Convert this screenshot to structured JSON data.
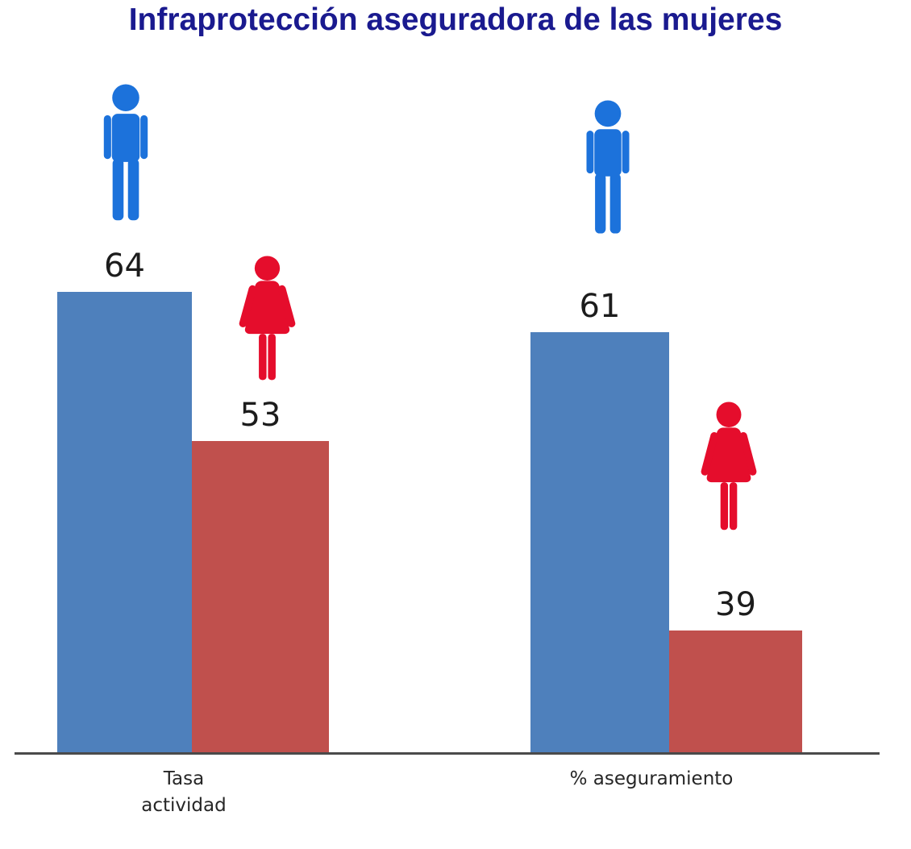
{
  "chart_data": {
    "type": "bar",
    "title": "Infraprotección aseguradora de las mujeres",
    "title_color": "#1A1A8F",
    "categories": [
      "Tasa actividad",
      "% aseguramiento"
    ],
    "categories_display": [
      [
        "Tasa",
        "actividad"
      ],
      [
        "% aseguramiento"
      ]
    ],
    "series": [
      {
        "name": "Hombres",
        "pictogram": "male-icon",
        "pictogram_color": "#1C72DB",
        "bar_color": "#4E80BC",
        "values": [
          64,
          61
        ]
      },
      {
        "name": "Mujeres",
        "pictogram": "female-icon",
        "pictogram_color": "#E50D2C",
        "bar_color": "#C0504D",
        "values": [
          53,
          39
        ]
      }
    ],
    "xlabel": "",
    "ylabel": "",
    "ylim": [
      30,
      66
    ],
    "y_axis_shown": false,
    "grid": false,
    "legend": "none",
    "data_labels_shown": true,
    "axis_line_color": "#4A4A4A",
    "value_label_color": "#1C1C1C",
    "category_label_color": "#262626",
    "background": "#FFFFFF"
  }
}
